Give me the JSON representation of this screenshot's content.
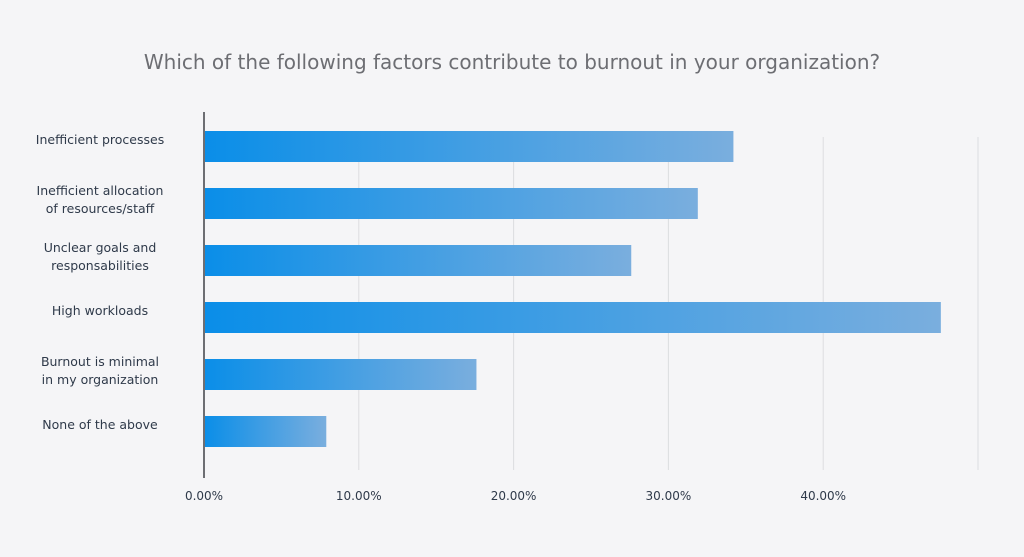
{
  "chart_data": {
    "type": "bar",
    "orientation": "horizontal",
    "title": "Which of the following factors contribute to burnout in your organization?",
    "categories": [
      [
        "Inefficient processes"
      ],
      [
        "Inefficient allocation",
        "of resources/staff"
      ],
      [
        "Unclear goals and",
        "responsabilities"
      ],
      [
        "High workloads"
      ],
      [
        "Burnout is minimal",
        "in my organization"
      ],
      [
        "None of the above"
      ]
    ],
    "values": [
      34.2,
      31.9,
      27.6,
      47.6,
      17.6,
      7.9
    ],
    "xlim": [
      0,
      50
    ],
    "ticks": [
      "0.00%",
      "10.00%",
      "20.00%",
      "30.00%",
      "40.00%"
    ],
    "tick_values": [
      0,
      10,
      20,
      30,
      40
    ],
    "grid": true,
    "colors": {
      "bar_start": "#0a8ee8",
      "bar_end": "#7aaede",
      "grid": "#dcdde0",
      "axis": "#6d6e73"
    }
  }
}
